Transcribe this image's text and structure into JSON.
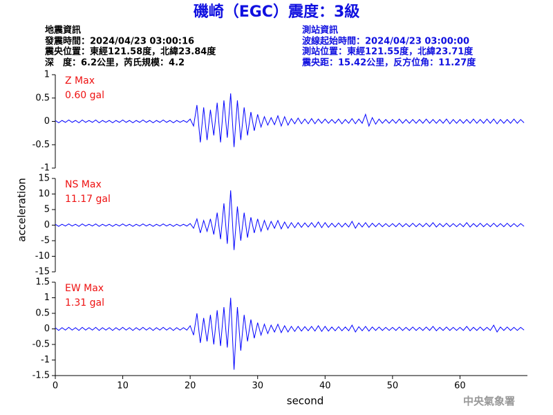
{
  "header": {
    "title": "磯崎（EGC）震度：3級",
    "left": [
      "地震資訊",
      "發震時間：2024/04/23 03:00:16",
      "震央位置：東經121.58度，北緯23.84度",
      "深　度：6.2公里，芮氏規模：4.2"
    ],
    "right": [
      "測站資訊",
      "波線起始時間：2024/04/23 03:00:00",
      "測站位置：東經121.55度，北緯23.71度",
      "震央距：15.42公里，反方位角：11.27度"
    ],
    "watermark": "中央氣象署"
  },
  "chart_data": [
    {
      "type": "line",
      "annotations": [
        "Z Max",
        "0.60 gal"
      ],
      "xlim": [
        0,
        70
      ],
      "ylim": [
        -1,
        1
      ],
      "yticks": [
        -1,
        -0.5,
        0,
        0.5,
        1
      ],
      "x": [
        0,
        0.5,
        1,
        1.5,
        2,
        2.5,
        3,
        3.5,
        4,
        4.5,
        5,
        5.5,
        6,
        6.5,
        7,
        7.5,
        8,
        8.5,
        9,
        9.5,
        10,
        10.5,
        11,
        11.5,
        12,
        12.5,
        13,
        13.5,
        14,
        14.5,
        15,
        15.5,
        16,
        16.5,
        17,
        17.5,
        18,
        18.5,
        19,
        19.5,
        20,
        20.5,
        21,
        21.5,
        22,
        22.5,
        23,
        23.5,
        24,
        24.5,
        25,
        25.5,
        26,
        26.5,
        27,
        27.5,
        28,
        28.5,
        29,
        29.5,
        30,
        30.5,
        31,
        31.5,
        32,
        32.5,
        33,
        33.5,
        34,
        34.5,
        35,
        35.5,
        36,
        36.5,
        37,
        37.5,
        38,
        38.5,
        39,
        39.5,
        40,
        40.5,
        41,
        41.5,
        42,
        42.5,
        43,
        43.5,
        44,
        44.5,
        45,
        45.5,
        46,
        46.5,
        47,
        47.5,
        48,
        48.5,
        49,
        49.5,
        50,
        50.5,
        51,
        51.5,
        52,
        52.5,
        53,
        53.5,
        54,
        54.5,
        55,
        55.5,
        56,
        56.5,
        57,
        57.5,
        58,
        58.5,
        59,
        59.5,
        60,
        60.5,
        61,
        61.5,
        62,
        62.5,
        63,
        63.5,
        64,
        64.5,
        65,
        65.5,
        66,
        66.5,
        67,
        67.5,
        68,
        68.5,
        69,
        69.5
      ],
      "series": [
        {
          "color": "#0000ff",
          "values": [
            0.02,
            -0.03,
            0.02,
            -0.02,
            0.03,
            -0.02,
            0.02,
            -0.03,
            0.03,
            -0.02,
            0.02,
            -0.02,
            0.03,
            -0.03,
            0.02,
            -0.02,
            0.02,
            -0.03,
            0.02,
            -0.02,
            0.03,
            -0.02,
            0.02,
            -0.03,
            0.02,
            -0.02,
            0.03,
            -0.02,
            0.02,
            -0.03,
            0.02,
            -0.02,
            0.03,
            -0.02,
            0.02,
            -0.03,
            0.02,
            -0.02,
            0.02,
            -0.02,
            0.05,
            -0.1,
            0.35,
            -0.45,
            0.3,
            -0.4,
            0.25,
            -0.3,
            0.4,
            -0.45,
            0.45,
            -0.35,
            0.6,
            -0.55,
            0.45,
            -0.4,
            0.3,
            -0.3,
            0.2,
            -0.2,
            0.15,
            -0.12,
            0.1,
            -0.08,
            0.08,
            -0.07,
            0.12,
            -0.1,
            0.1,
            -0.08,
            0.06,
            -0.05,
            0.07,
            -0.05,
            0.05,
            -0.05,
            0.06,
            -0.05,
            0.05,
            -0.04,
            0.05,
            -0.04,
            0.04,
            -0.04,
            0.05,
            -0.05,
            0.04,
            -0.04,
            0.06,
            -0.05,
            0.05,
            -0.04,
            0.15,
            -0.1,
            0.08,
            -0.06,
            0.05,
            -0.04,
            0.04,
            -0.04,
            0.04,
            -0.04,
            0.05,
            -0.04,
            0.04,
            -0.04,
            0.04,
            -0.04,
            0.04,
            -0.04,
            0.05,
            -0.04,
            0.04,
            -0.04,
            0.04,
            -0.04,
            0.05,
            -0.05,
            0.04,
            -0.04,
            0.04,
            -0.04,
            0.04,
            -0.04,
            0.05,
            -0.04,
            0.04,
            -0.04,
            0.05,
            -0.04,
            0.05,
            -0.05,
            0.04,
            -0.04,
            0.04,
            -0.04,
            0.05,
            -0.04,
            0.04,
            -0.03
          ]
        }
      ]
    },
    {
      "type": "line",
      "annotations": [
        "NS Max",
        "11.17 gal"
      ],
      "y_label": "acceleration",
      "xlim": [
        0,
        70
      ],
      "ylim": [
        -15,
        15
      ],
      "yticks": [
        -15,
        -10,
        -5,
        0,
        5,
        10,
        15
      ],
      "x": [
        0,
        0.5,
        1,
        1.5,
        2,
        2.5,
        3,
        3.5,
        4,
        4.5,
        5,
        5.5,
        6,
        6.5,
        7,
        7.5,
        8,
        8.5,
        9,
        9.5,
        10,
        10.5,
        11,
        11.5,
        12,
        12.5,
        13,
        13.5,
        14,
        14.5,
        15,
        15.5,
        16,
        16.5,
        17,
        17.5,
        18,
        18.5,
        19,
        19.5,
        20,
        20.5,
        21,
        21.5,
        22,
        22.5,
        23,
        23.5,
        24,
        24.5,
        25,
        25.5,
        26,
        26.5,
        27,
        27.5,
        28,
        28.5,
        29,
        29.5,
        30,
        30.5,
        31,
        31.5,
        32,
        32.5,
        33,
        33.5,
        34,
        34.5,
        35,
        35.5,
        36,
        36.5,
        37,
        37.5,
        38,
        38.5,
        39,
        39.5,
        40,
        40.5,
        41,
        41.5,
        42,
        42.5,
        43,
        43.5,
        44,
        44.5,
        45,
        45.5,
        46,
        46.5,
        47,
        47.5,
        48,
        48.5,
        49,
        49.5,
        50,
        50.5,
        51,
        51.5,
        52,
        52.5,
        53,
        53.5,
        54,
        54.5,
        55,
        55.5,
        56,
        56.5,
        57,
        57.5,
        58,
        58.5,
        59,
        59.5,
        60,
        60.5,
        61,
        61.5,
        62,
        62.5,
        63,
        63.5,
        64,
        64.5,
        65,
        65.5,
        66,
        66.5,
        67,
        67.5,
        68,
        68.5,
        69,
        69.5
      ],
      "series": [
        {
          "color": "#0000ff",
          "values": [
            0.3,
            -0.4,
            0.3,
            -0.3,
            0.4,
            -0.3,
            0.3,
            -0.4,
            0.4,
            -0.3,
            0.3,
            -0.3,
            0.4,
            -0.4,
            0.3,
            -0.3,
            0.3,
            -0.4,
            0.3,
            -0.3,
            0.4,
            -0.3,
            0.3,
            -0.4,
            0.3,
            -0.3,
            0.4,
            -0.3,
            0.3,
            -0.4,
            0.3,
            -0.3,
            0.4,
            -0.3,
            0.3,
            -0.4,
            0.3,
            -0.3,
            0.3,
            -0.3,
            0.5,
            -1,
            2,
            -2.5,
            1.5,
            -2,
            2,
            -3,
            4,
            -4.5,
            7,
            -6,
            11.17,
            -8,
            6,
            -5,
            4,
            -4,
            2.5,
            -2.5,
            2,
            -2,
            1.5,
            -1.5,
            1.2,
            -1,
            1.5,
            -1.2,
            1,
            -1,
            0.8,
            -0.8,
            0.8,
            -0.7,
            0.7,
            -0.6,
            0.8,
            -0.7,
            1,
            -0.8,
            0.8,
            -0.7,
            0.6,
            -0.6,
            0.7,
            -0.6,
            0.6,
            -0.6,
            1.2,
            -1,
            0.7,
            -0.6,
            0.8,
            -0.7,
            0.6,
            -0.5,
            0.6,
            -0.5,
            0.5,
            -0.5,
            0.5,
            -0.5,
            0.6,
            -0.5,
            0.5,
            -0.5,
            0.6,
            -0.5,
            0.5,
            -0.5,
            0.6,
            -0.5,
            0.8,
            -0.6,
            0.5,
            -0.5,
            0.6,
            -0.5,
            0.5,
            -0.5,
            0.5,
            -0.5,
            0.8,
            -0.6,
            0.5,
            -0.5,
            0.6,
            -0.5,
            0.5,
            -0.5,
            0.6,
            -0.5,
            0.5,
            -0.5,
            0.6,
            -0.5,
            0.5,
            -0.5,
            0.5,
            -0.4
          ]
        }
      ]
    },
    {
      "type": "line",
      "annotations": [
        "EW Max",
        "1.31 gal"
      ],
      "x_label": "second",
      "xlim": [
        0,
        70
      ],
      "xticks": [
        0,
        10,
        20,
        30,
        40,
        50,
        60
      ],
      "ylim": [
        -1.5,
        1.5
      ],
      "yticks": [
        -1.5,
        -1,
        -0.5,
        0,
        0.5,
        1,
        1.5
      ],
      "x": [
        0,
        0.5,
        1,
        1.5,
        2,
        2.5,
        3,
        3.5,
        4,
        4.5,
        5,
        5.5,
        6,
        6.5,
        7,
        7.5,
        8,
        8.5,
        9,
        9.5,
        10,
        10.5,
        11,
        11.5,
        12,
        12.5,
        13,
        13.5,
        14,
        14.5,
        15,
        15.5,
        16,
        16.5,
        17,
        17.5,
        18,
        18.5,
        19,
        19.5,
        20,
        20.5,
        21,
        21.5,
        22,
        22.5,
        23,
        23.5,
        24,
        24.5,
        25,
        25.5,
        26,
        26.5,
        27,
        27.5,
        28,
        28.5,
        29,
        29.5,
        30,
        30.5,
        31,
        31.5,
        32,
        32.5,
        33,
        33.5,
        34,
        34.5,
        35,
        35.5,
        36,
        36.5,
        37,
        37.5,
        38,
        38.5,
        39,
        39.5,
        40,
        40.5,
        41,
        41.5,
        42,
        42.5,
        43,
        43.5,
        44,
        44.5,
        45,
        45.5,
        46,
        46.5,
        47,
        47.5,
        48,
        48.5,
        49,
        49.5,
        50,
        50.5,
        51,
        51.5,
        52,
        52.5,
        53,
        53.5,
        54,
        54.5,
        55,
        55.5,
        56,
        56.5,
        57,
        57.5,
        58,
        58.5,
        59,
        59.5,
        60,
        60.5,
        61,
        61.5,
        62,
        62.5,
        63,
        63.5,
        64,
        64.5,
        65,
        65.5,
        66,
        66.5,
        67,
        67.5,
        68,
        68.5,
        69,
        69.5
      ],
      "series": [
        {
          "color": "#0000ff",
          "values": [
            0.04,
            -0.05,
            0.04,
            -0.04,
            0.05,
            -0.04,
            0.04,
            -0.05,
            0.05,
            -0.04,
            0.04,
            -0.04,
            0.05,
            -0.05,
            0.04,
            -0.04,
            0.04,
            -0.05,
            0.04,
            -0.04,
            0.05,
            -0.04,
            0.04,
            -0.05,
            0.04,
            -0.04,
            0.05,
            -0.04,
            0.04,
            -0.05,
            0.04,
            -0.04,
            0.05,
            -0.04,
            0.04,
            -0.05,
            0.04,
            -0.04,
            0.04,
            -0.04,
            0.1,
            -0.2,
            0.5,
            -0.45,
            0.35,
            -0.4,
            0.45,
            -0.5,
            0.6,
            -0.55,
            0.7,
            -0.6,
            1,
            -1.31,
            0.7,
            -0.7,
            0.45,
            -0.4,
            0.3,
            -0.3,
            0.2,
            -0.2,
            0.15,
            -0.15,
            0.12,
            -0.1,
            0.15,
            -0.12,
            0.1,
            -0.1,
            0.08,
            -0.08,
            0.08,
            -0.07,
            0.07,
            -0.06,
            0.08,
            -0.07,
            0.1,
            -0.08,
            0.08,
            -0.07,
            0.06,
            -0.06,
            0.07,
            -0.06,
            0.06,
            -0.06,
            0.12,
            -0.1,
            0.07,
            -0.06,
            0.08,
            -0.07,
            0.06,
            -0.05,
            0.06,
            -0.05,
            0.05,
            -0.05,
            0.05,
            -0.05,
            0.06,
            -0.05,
            0.05,
            -0.05,
            0.06,
            -0.05,
            0.05,
            -0.05,
            0.06,
            -0.05,
            0.08,
            -0.06,
            0.05,
            -0.05,
            0.06,
            -0.05,
            0.05,
            -0.05,
            0.05,
            -0.05,
            0.08,
            -0.06,
            0.05,
            -0.05,
            0.06,
            -0.05,
            0.05,
            -0.05,
            0.12,
            -0.1,
            0.06,
            -0.05,
            0.06,
            -0.05,
            0.05,
            -0.05,
            0.05,
            -0.04
          ]
        }
      ]
    }
  ]
}
